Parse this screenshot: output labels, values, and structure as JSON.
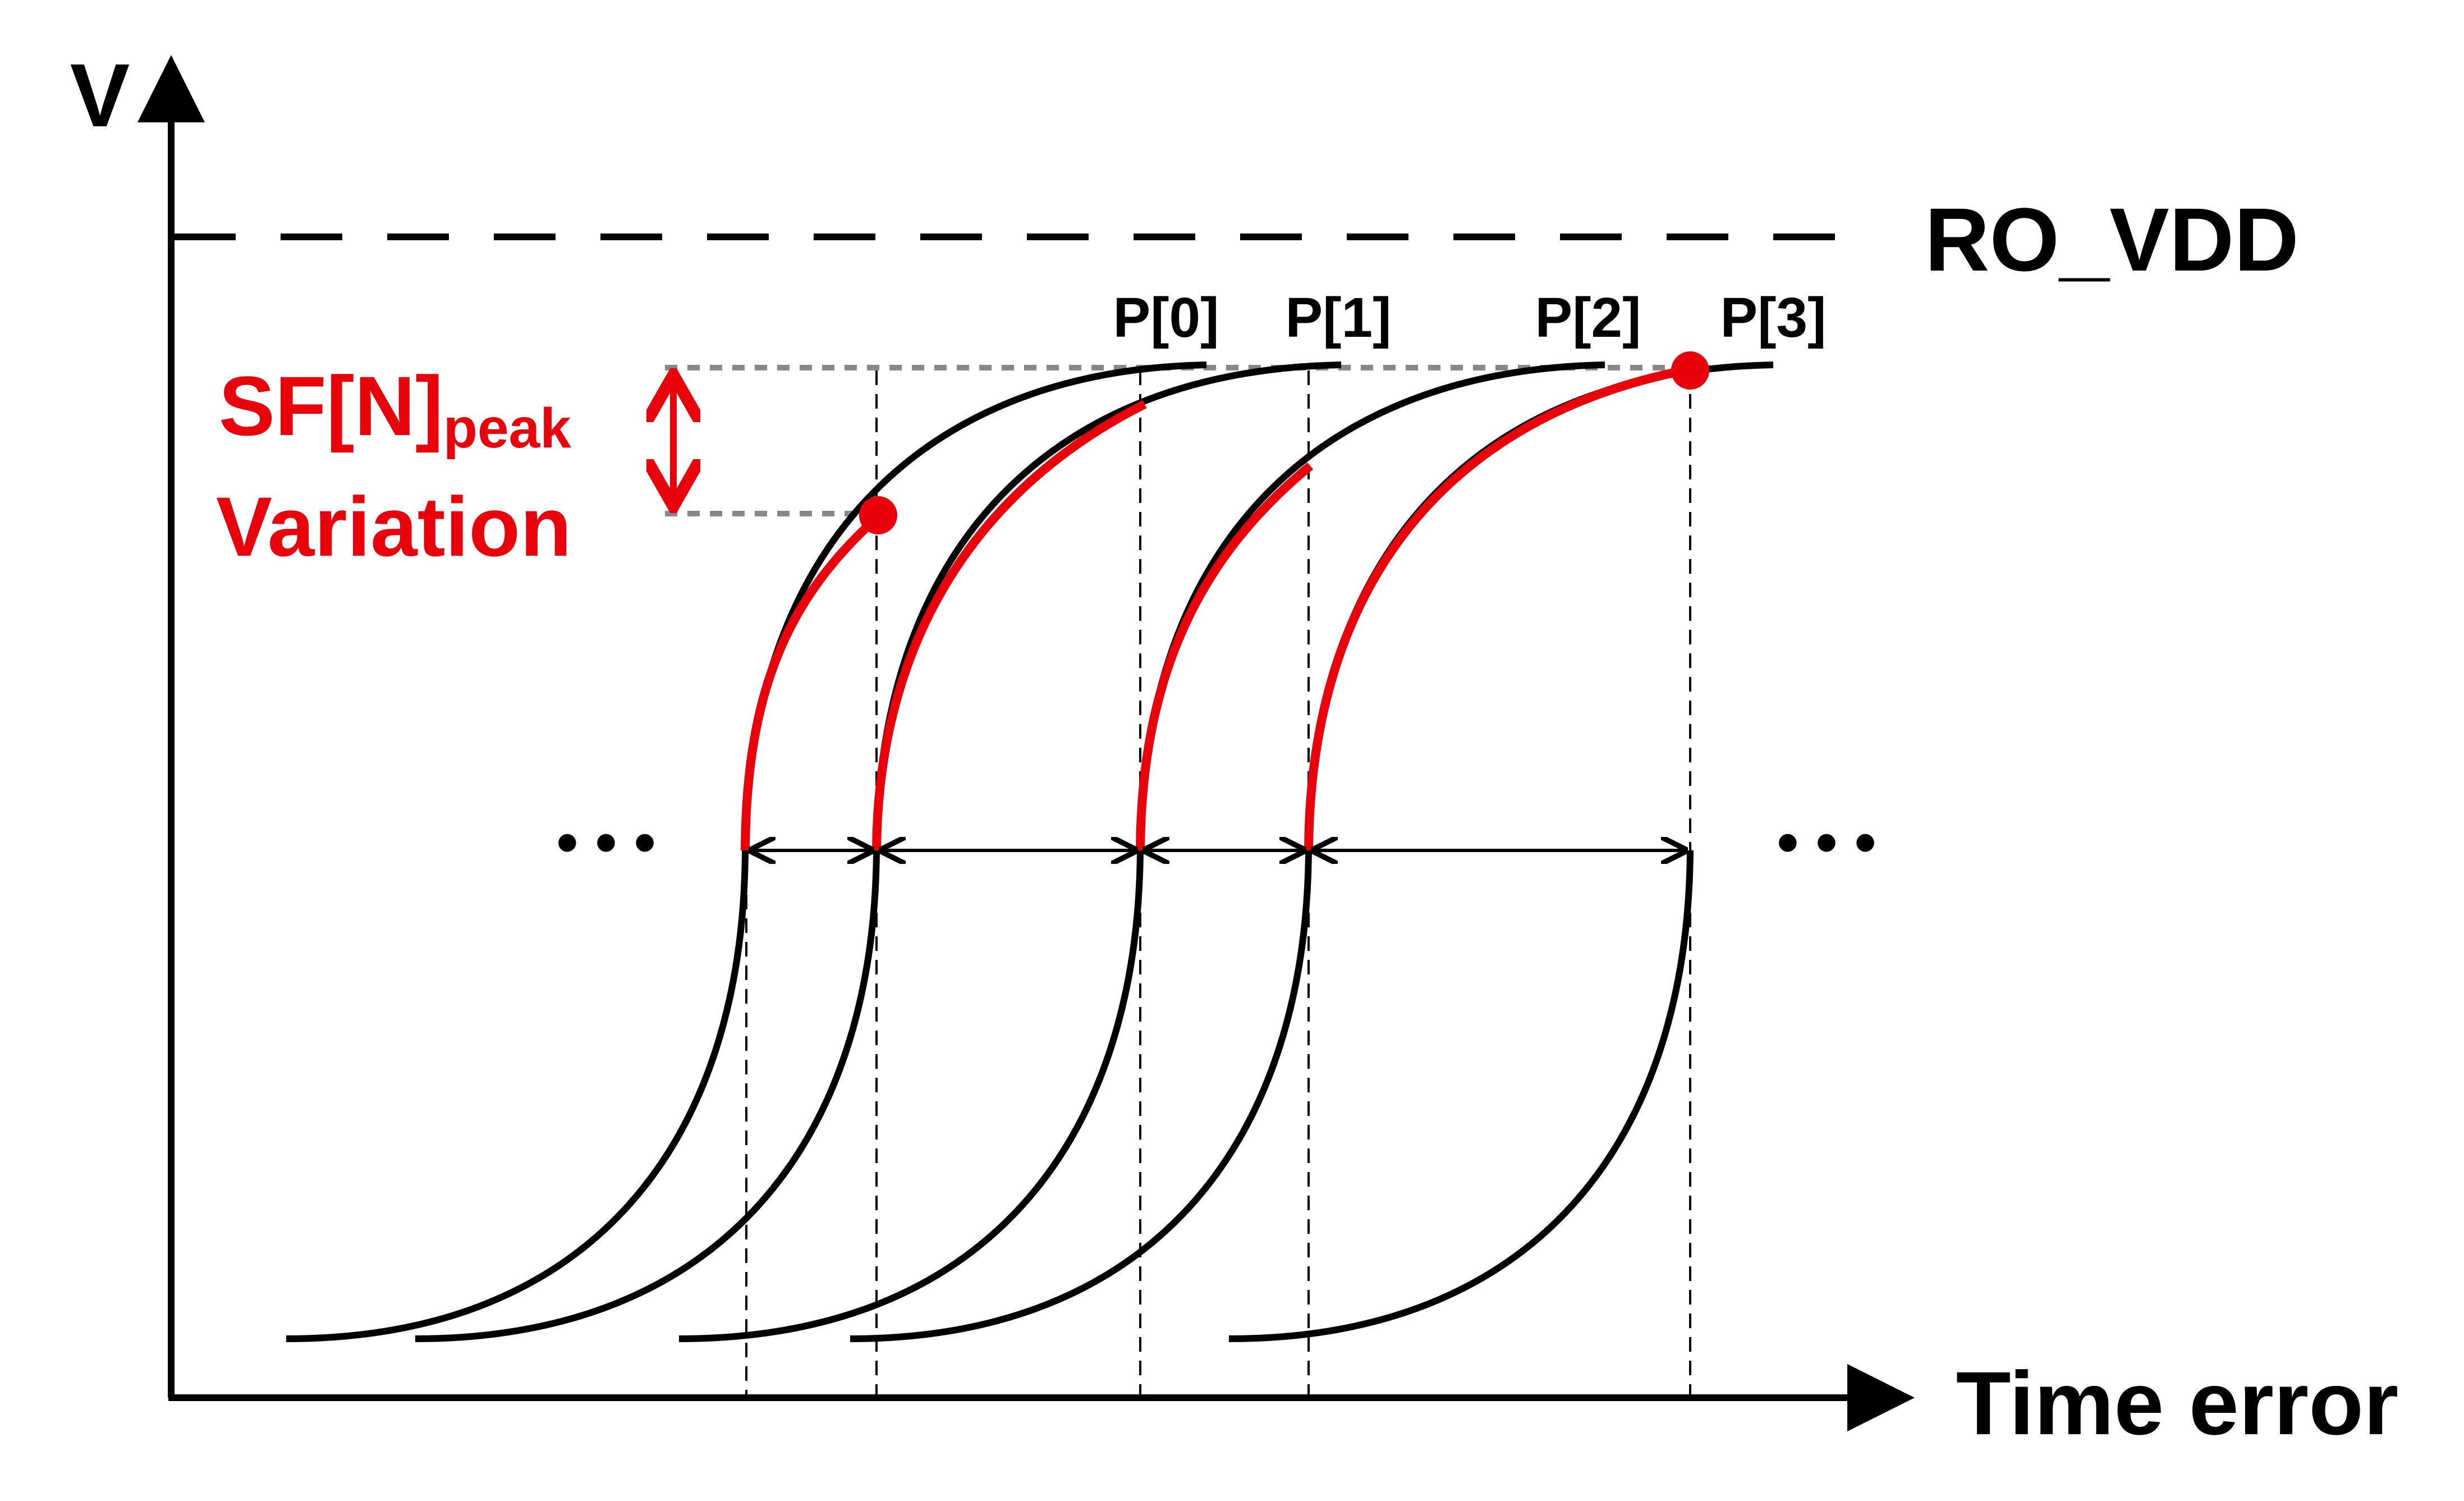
{
  "axes": {
    "y_label": "V",
    "x_label": "Time error"
  },
  "reference_line": {
    "label": "RO_VDD",
    "style": "dashed"
  },
  "phase_labels": [
    "P[0]",
    "P[1]",
    "P[2]",
    "P[3]"
  ],
  "annotation": {
    "line1_main": "SF[N]",
    "line1_subscript": "peak",
    "line2": "Variation"
  },
  "ellipsis_left": "• • •",
  "ellipsis_right": "• • •",
  "colors": {
    "curve": "#000000",
    "highlight": "#e8000b",
    "guide": "#888888",
    "background": "#ffffff"
  }
}
